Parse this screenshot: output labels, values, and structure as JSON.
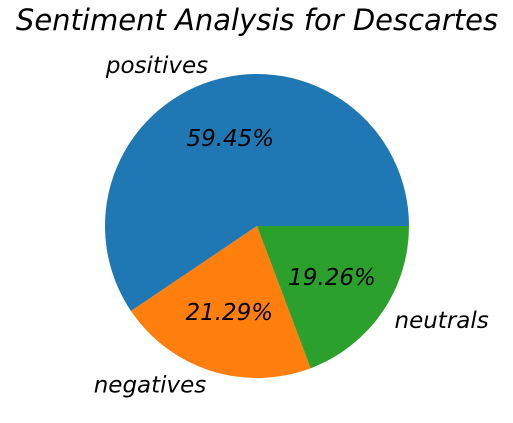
{
  "chart_data": {
    "type": "pie",
    "title": "Sentiment Analysis for Descartes",
    "categories": [
      "positives",
      "negatives",
      "neutrals"
    ],
    "values": [
      59.45,
      21.29,
      19.26
    ],
    "value_labels": [
      "59.45%",
      "21.29%",
      "19.26%"
    ],
    "colors": [
      "#1f77b4",
      "#ff7f0e",
      "#2ca02c"
    ],
    "start_angle_deg": 0,
    "direction": "counterclockwise"
  }
}
